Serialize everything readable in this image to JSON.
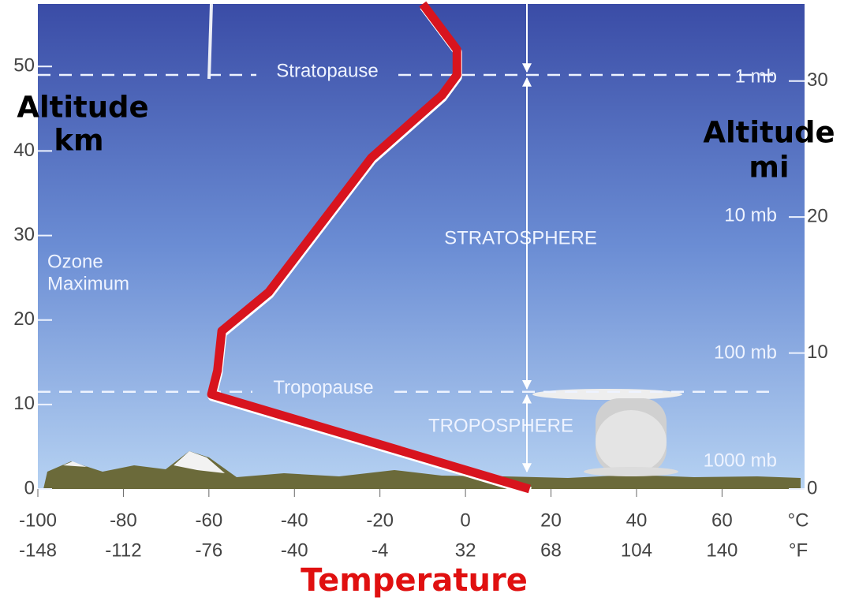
{
  "chart_data": {
    "type": "line",
    "xlabel": "Temperature",
    "ylabel": [
      "Altitude",
      "km"
    ],
    "y2label": [
      "Altitude",
      "mi"
    ],
    "x": [
      15,
      -59.4,
      -58,
      -57,
      -46,
      -22,
      -5.5,
      -2,
      -2,
      -10
    ],
    "values": [
      0,
      11.2,
      14,
      18.7,
      23.3,
      39.2,
      46.6,
      49,
      52,
      57.4
    ],
    "color": "#d8141e",
    "xlim": [
      -100,
      79.3
    ],
    "xticks": [
      -100,
      -80,
      -60,
      -40,
      -20,
      0,
      20,
      40,
      60
    ],
    "fahrenheit_labels": [
      -148,
      -112,
      -76,
      -40,
      -4,
      32,
      68,
      104,
      140
    ],
    "x_units": [
      "°C",
      "°F"
    ],
    "ylim": [
      0,
      57.4
    ],
    "yticks": [
      0,
      10,
      20,
      30,
      40,
      50
    ],
    "y2lim": [
      0,
      35.67
    ],
    "y2ticks": [
      0,
      10,
      20,
      30
    ],
    "layers": [
      {
        "label": "Stratopause",
        "y": 49
      },
      {
        "label": "Tropopause",
        "y": 11.5
      }
    ],
    "regions": [
      "STRATOSPHERE",
      "TROPOSPHERE"
    ],
    "pressure_labels": [
      "1 mb",
      "10 mb",
      "100 mb",
      "1000 mb"
    ],
    "ozone_label": [
      "Ozone",
      "Maximum"
    ]
  }
}
